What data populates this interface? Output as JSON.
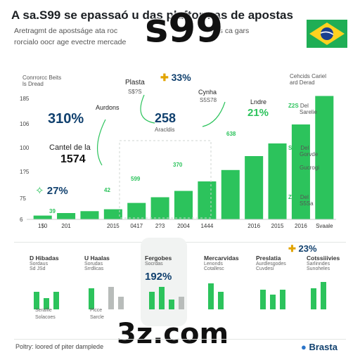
{
  "header": {
    "title": "A sa.S99 se epassaó u das plaftormas de apostas",
    "subtitle_1": "Aretragmt de apostságe ata roc",
    "subtitle_1b": "des ca gars",
    "subtitle_2": "rorcialo oocr age evectre mercade",
    "watermark_top": "s99",
    "watermark_bottom": "3z.com"
  },
  "colors": {
    "bar": "#2cc35c",
    "bar_dark": "#1f9d4a",
    "gray_bar": "#b8bcba",
    "flag_green": "#1fae55",
    "flag_yellow": "#ffd21f",
    "flag_blue": "#1a3f8f"
  },
  "icons": {
    "flag": "brazil-flag-icon",
    "leaf": "leaf-icon",
    "bulb": "lightbulb-icon",
    "info": "info-icon"
  },
  "annotations": {
    "top_left": [
      "Conrrorcc Beits",
      "ls Dread"
    ],
    "top_right": [
      "Cehcids Cariel",
      "ard Derad"
    ],
    "pct_310": "310%",
    "cartel_label": "Cantel de la",
    "cartel_value": "1574",
    "pct_27": "27%",
    "aurdons": "Aurdons",
    "plasta": "Plasta",
    "plasta_sub": "S$?S",
    "pct_33": "33%",
    "center_value": "258",
    "center_sub": "Aracldis",
    "cynha": "Cynha",
    "cynha_sub": "S5S78",
    "landre": "Lndre",
    "pct_21": "21%",
    "bar_lbl_39": "39",
    "bar_lbl_42": "42",
    "bar_lbl_599": "599",
    "bar_lbl_370": "370",
    "bar_lbl_638": "638",
    "side_notes": [
      {
        "v": "Del",
        "s": "Sarelie"
      },
      {
        "v": "Del",
        "s": "Gorvde"
      },
      {
        "v": "Del",
        "s": "Gucrogi"
      },
      {
        "v": "Del",
        "s": "S5Sa"
      }
    ],
    "right_side_lbls": [
      "Z2S",
      "S1S",
      "Z2S",
      "Z2S"
    ]
  },
  "chart_data": {
    "type": "bar",
    "categories": [
      "1$0",
      "201",
      "",
      "2015",
      "0417",
      "2?3",
      "2004",
      "1444",
      "",
      "2016",
      "2015",
      "2016",
      "Svaale"
    ],
    "values": [
      6,
      10,
      13,
      16,
      26,
      35,
      45,
      60,
      78,
      100,
      120,
      150,
      195
    ],
    "y_ticks": [
      "6",
      "75",
      "1?5",
      "100",
      "106",
      "185"
    ],
    "ylim": [
      0,
      200
    ],
    "xlabel": "",
    "ylabel": "",
    "grid": false
  },
  "panels": [
    {
      "title": "D Hibadas",
      "sub": "Sordaus",
      "sub2": "Sd JSd",
      "bars": [
        0.55,
        0.35,
        0.55,
        0.0
      ],
      "gray": [],
      "foot": "Seralfie",
      "foot2": "Solacoes"
    },
    {
      "title": "U Haalas",
      "sub": "Sorudas",
      "sub2": "Srrdlicas",
      "bars": [
        0.65,
        0.0
      ],
      "gray": [
        0.7,
        0.4
      ],
      "foot": "Plcce",
      "foot2": "Sarcle"
    },
    {
      "title": "Fergobes",
      "sub": "Socrdas",
      "sub2": "",
      "bars": [
        0.55,
        0.7,
        0.3
      ],
      "gray": [
        0.4
      ],
      "foot": "",
      "foot2": "",
      "value": "192%"
    },
    {
      "title": "Mercarvidas",
      "sub": "Lenonds",
      "sub2": "Cotallesc",
      "bars": [
        0.8,
        0.55
      ],
      "gray": [],
      "foot": "",
      "foot2": ""
    },
    {
      "title": "Preslatia",
      "sub": "Aurdlesgodes",
      "sub2": "Cuvdesi",
      "bars": [
        0.6,
        0.45,
        0.6
      ],
      "gray": [],
      "foot": "",
      "foot2": ""
    },
    {
      "title": "Cotssiiivies",
      "sub": "Sarlinndes",
      "sub2": "Sunoheles",
      "bars": [
        0.65,
        0.85
      ],
      "gray": [],
      "foot": "",
      "foot2": ""
    }
  ],
  "panel_pct": "23%",
  "footer": {
    "line": "Poltry: loored of piter damplede",
    "brand": "Brasta"
  }
}
